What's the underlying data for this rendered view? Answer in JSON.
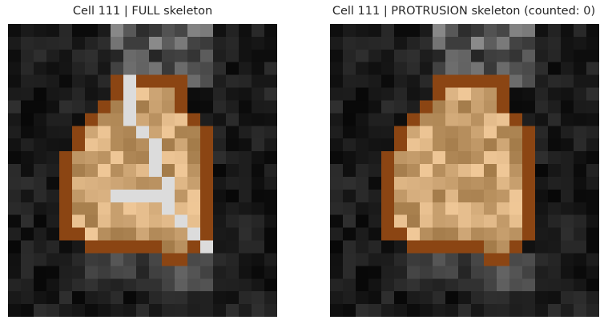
{
  "panels": [
    {
      "title": "Cell 111 | FULL skeleton",
      "skeleton": "full"
    },
    {
      "title": "Cell 111 | PROTRUSION skeleton (counted: 0)",
      "skeleton": "protrusion"
    }
  ],
  "colors": {
    "cell_border": "#8b4513",
    "cell_fill_light": "#f0c898",
    "cell_fill_dark": "#8a6230",
    "skeleton": "#dcdcdc",
    "background": "#0d0d0d"
  }
}
